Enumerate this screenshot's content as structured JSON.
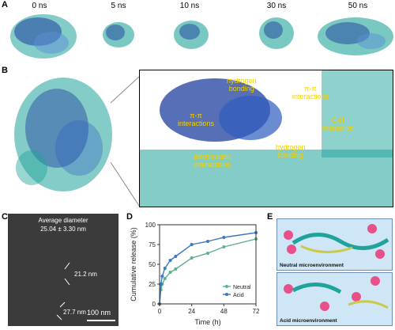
{
  "panels": {
    "A": "A",
    "B": "B",
    "C": "C",
    "D": "D",
    "E": "E"
  },
  "time_labels": [
    "0 ns",
    "5 ns",
    "10 ns",
    "30 ns",
    "50 ns"
  ],
  "interactions": {
    "hydrogen_bonding_top_1": "hydrogen",
    "hydrogen_bonding_top_2": "bonding",
    "pi_pi_1": "π-π",
    "pi_pi_2": "interactions",
    "pi_pi_left_1": "π-π",
    "pi_pi_left_2": "interactions",
    "ch_1": "C-H",
    "ch_2": "interaction",
    "electrostatic_1": "electrostatic",
    "electrostatic_2": "interactions",
    "hydrogen_bonding_bot_1": "hydrogen",
    "hydrogen_bonding_bot_2": "bonding"
  },
  "microscopy": {
    "avg_label": "Average diameter",
    "avg_value": "25.04 ± 3.30 nm",
    "measure_1": "21.2 nm",
    "measure_2": "27.7 nm",
    "scale_bar": "100 nm"
  },
  "environment": {
    "neutral": "Neutral microenvironment",
    "acid": "Acid microenvironment"
  },
  "colors": {
    "neutral": "#5bb08a",
    "acid": "#3a78c0",
    "teal": "#1fa39a",
    "navy": "#1f3f9e"
  },
  "chart_data": {
    "type": "line",
    "xlabel": "Time (h)",
    "ylabel": "Cumulative release (%)",
    "xlim": [
      0,
      72
    ],
    "ylim": [
      0,
      100
    ],
    "xticks": [
      "0",
      "24",
      "48",
      "72"
    ],
    "yticks": [
      "0",
      "25",
      "50",
      "75",
      "100"
    ],
    "legend_position": "bottom-right",
    "series": [
      {
        "name": "Neutral",
        "x": [
          0,
          1,
          2,
          4,
          8,
          12,
          24,
          36,
          48,
          72
        ],
        "y": [
          0,
          18,
          25,
          32,
          40,
          44,
          58,
          64,
          72,
          82
        ]
      },
      {
        "name": "Acid",
        "x": [
          0,
          1,
          2,
          4,
          8,
          12,
          24,
          36,
          48,
          72
        ],
        "y": [
          0,
          25,
          35,
          45,
          55,
          60,
          75,
          79,
          84,
          90
        ]
      }
    ]
  }
}
